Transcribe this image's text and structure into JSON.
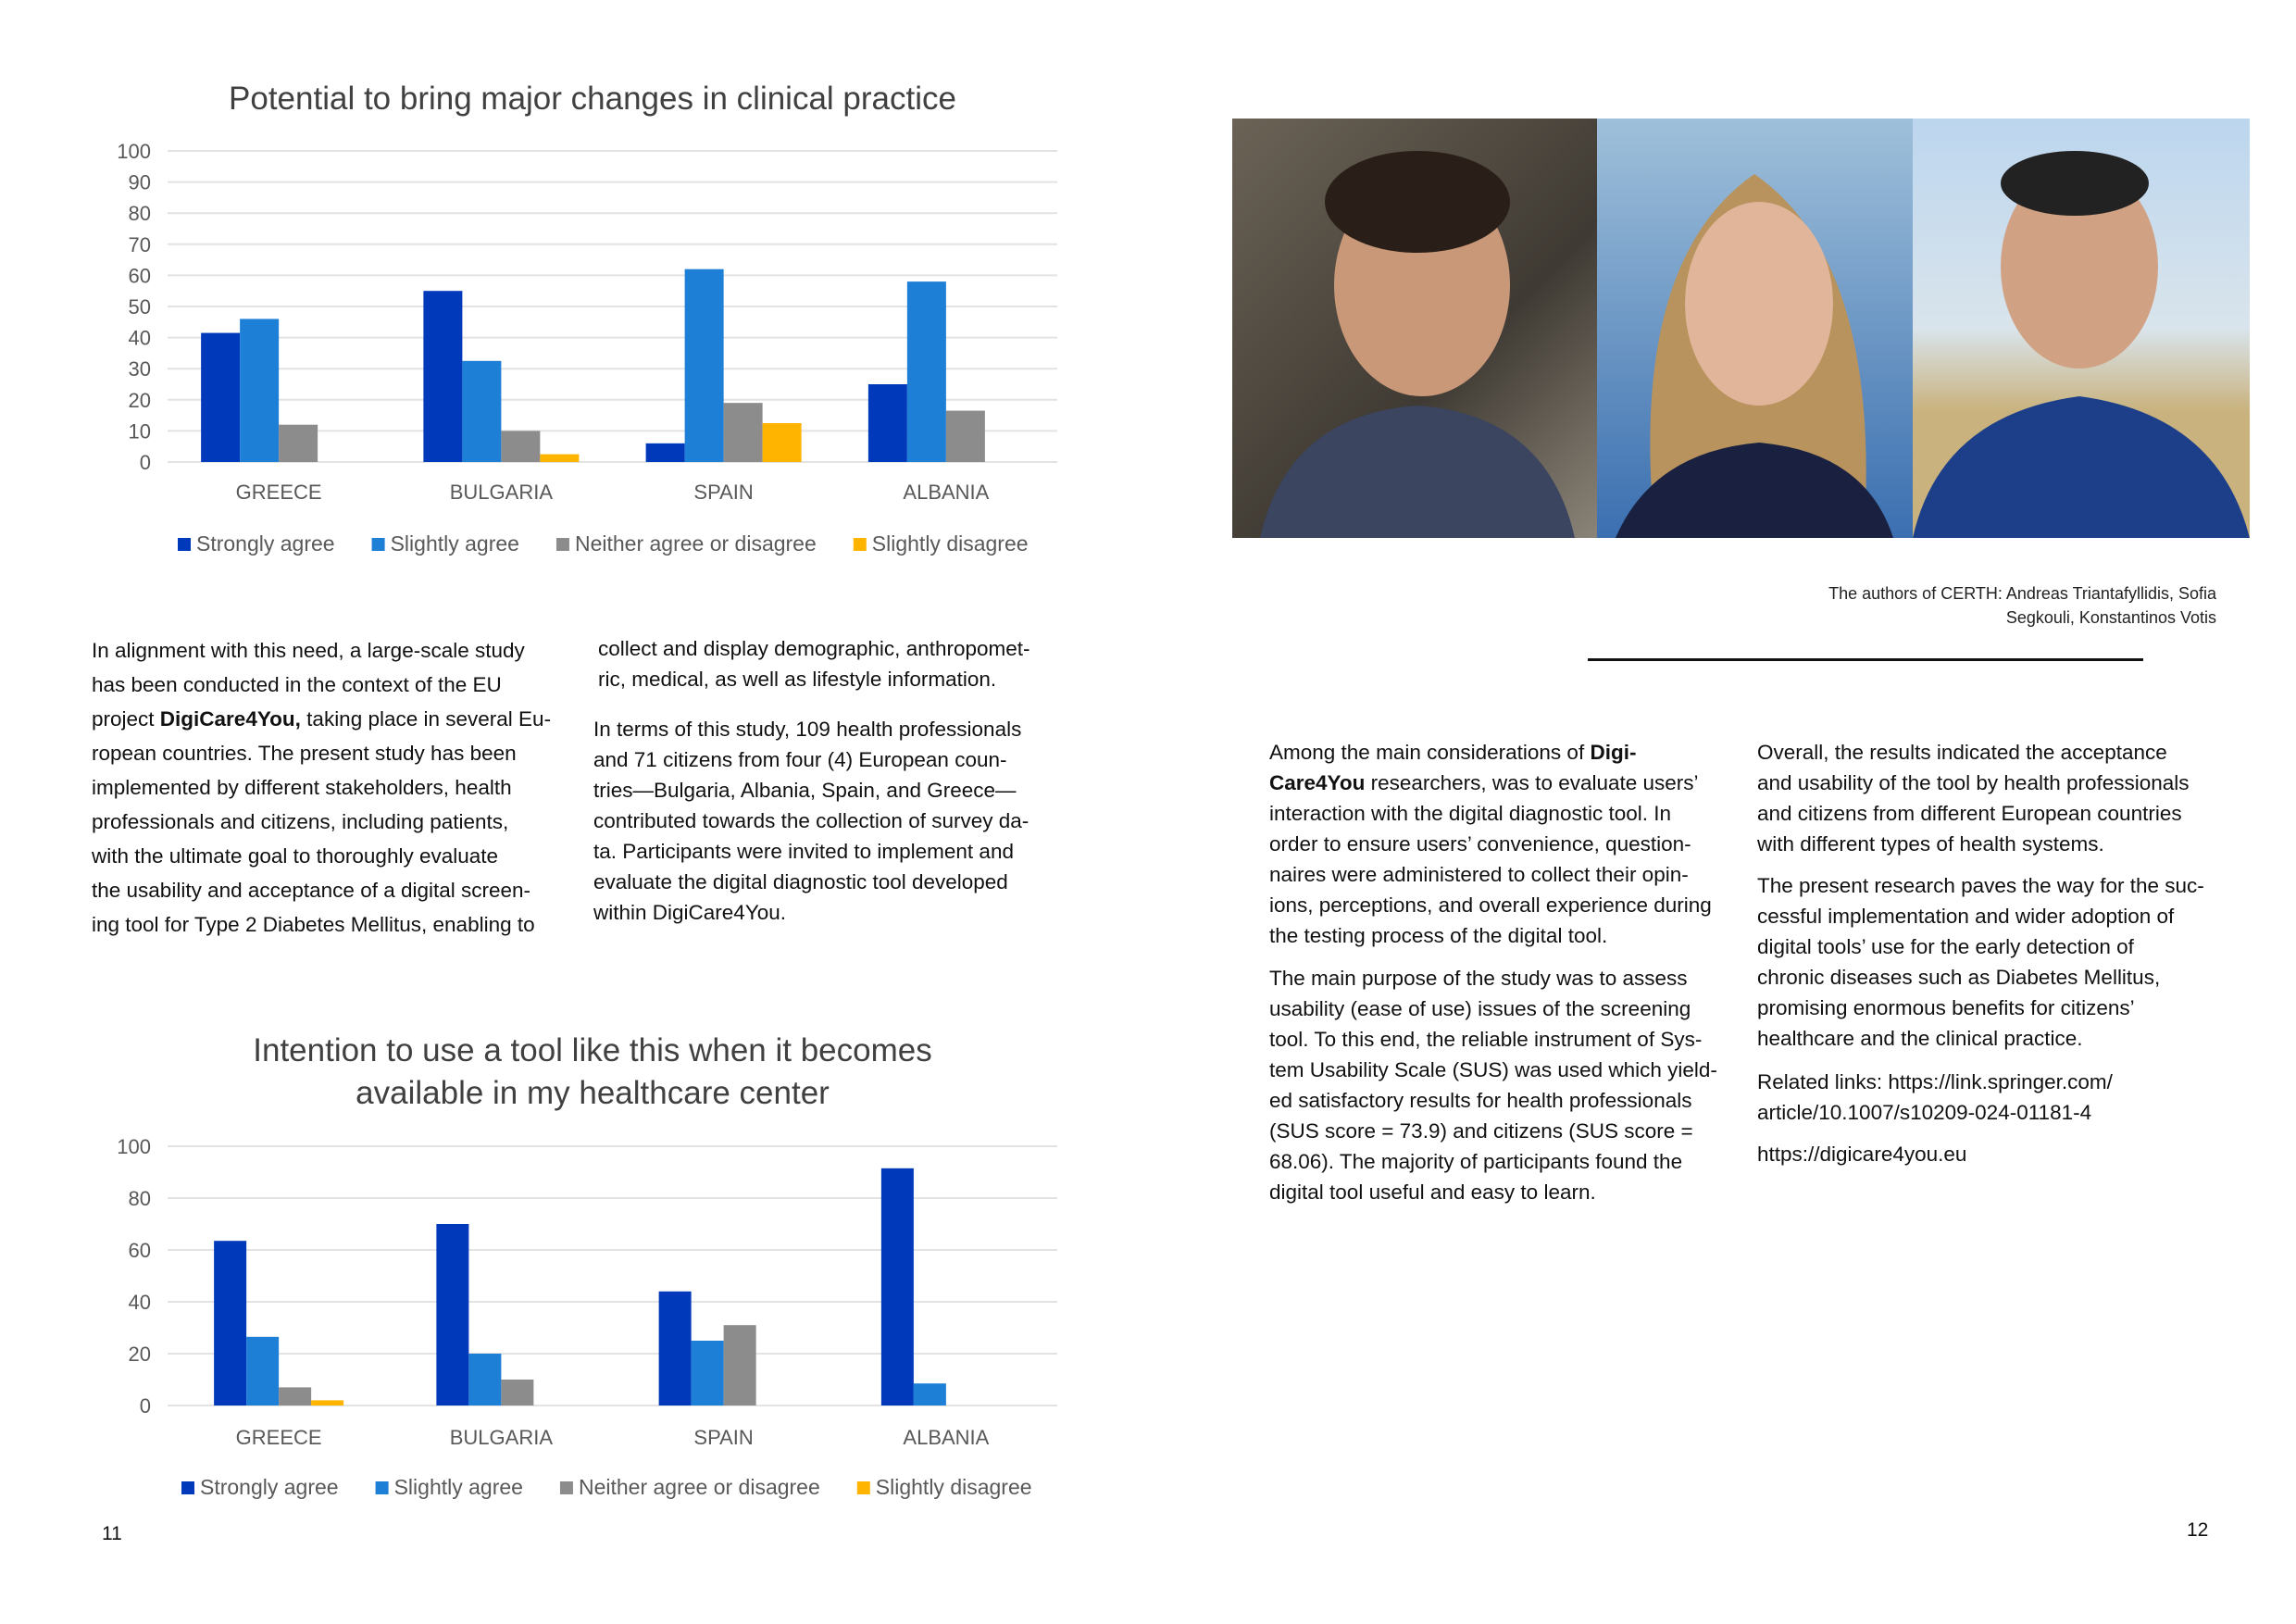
{
  "chart_data": [
    {
      "type": "bar",
      "title": "Potential to bring major changes in clinical practice",
      "categories": [
        "GREECE",
        "BULGARIA",
        "SPAIN",
        "ALBANIA"
      ],
      "ylim": [
        0,
        100
      ],
      "yticks": [
        0,
        10,
        20,
        30,
        40,
        50,
        60,
        70,
        80,
        90,
        100
      ],
      "grid": true,
      "legend": "bottom",
      "series": [
        {
          "name": "Strongly agree",
          "color": "#0039BA",
          "values": [
            41.5,
            55,
            6,
            25
          ]
        },
        {
          "name": "Slightly agree",
          "color": "#1E7FD6",
          "values": [
            46,
            32.5,
            62,
            58
          ]
        },
        {
          "name": "Neither agree or disagree",
          "color": "#8C8C8C",
          "values": [
            12,
            10,
            19,
            16.5
          ]
        },
        {
          "name": "Slightly disagree",
          "color": "#FFB400",
          "values": [
            0,
            2.5,
            12.5,
            0
          ]
        }
      ]
    },
    {
      "type": "bar",
      "title": [
        "Intention to use a tool like this when it becomes",
        "available in my healthcare center"
      ],
      "categories": [
        "GREECE",
        "BULGARIA",
        "SPAIN",
        "ALBANIA"
      ],
      "ylim": [
        0,
        100
      ],
      "yticks": [
        0,
        20,
        40,
        60,
        80,
        100
      ],
      "grid": true,
      "legend": "bottom",
      "series": [
        {
          "name": "Strongly agree",
          "color": "#0039BA",
          "values": [
            63.5,
            70,
            44,
            91.5
          ]
        },
        {
          "name": "Slightly agree",
          "color": "#1E7FD6",
          "values": [
            26.5,
            20,
            25,
            8.5
          ]
        },
        {
          "name": "Neither agree or disagree",
          "color": "#8C8C8C",
          "values": [
            7,
            10,
            31,
            0
          ]
        },
        {
          "name": "Slightly disagree",
          "color": "#FFB400",
          "values": [
            2,
            0,
            0,
            0
          ]
        }
      ]
    }
  ],
  "left_text": {
    "col1": [
      [
        "In alignment with this need, a large-scale study",
        "has been conducted in the context of the EU",
        [
          {
            "text": "project "
          },
          {
            "text": "DigiCare4You,",
            "bold": true
          },
          {
            "text": " taking place in several Eu-"
          }
        ],
        "ropean countries. The present study has been",
        "implemented by different stakeholders, health",
        "professionals and citizens, including patients,",
        "with the ultimate goal to thoroughly evaluate",
        "the usability and acceptance of a digital screen-",
        "ing tool for Type 2 Diabetes Mellitus, enabling to"
      ]
    ],
    "col2": [
      [
        "collect and display demographic, anthropomet-",
        "ric, medical, as well as lifestyle information."
      ],
      [
        "In terms of this study, 109 health professionals",
        "and 71 citizens from four (4) European coun-",
        "tries—Bulgaria, Albania, Spain, and Greece—",
        "contributed towards the collection of survey da-",
        "ta. Participants were invited to implement and",
        "evaluate the digital diagnostic tool developed",
        "within DigiCare4You."
      ]
    ]
  },
  "photo_caption": [
    "The authors of CERTH: Andreas Triantafyllidis, Sofia",
    "Segkouli, Konstantinos Votis"
  ],
  "right_text": {
    "col3": [
      [
        [
          {
            "text": "Among the main considerations of "
          },
          {
            "text": "Digi-",
            "bold": true
          }
        ],
        [
          {
            "text": "Care4You",
            "bold": true
          },
          {
            "text": " researchers, was to evaluate users’"
          }
        ],
        "interaction with the digital diagnostic tool. In",
        "order to ensure users’ convenience, question-",
        "naires were administered to collect their opin-",
        "ions, perceptions, and overall experience during",
        "the testing process of the digital tool."
      ],
      [
        "The main purpose of the study was to assess",
        "usability (ease of use) issues of the screening",
        "tool. To this end, the reliable instrument of Sys-",
        "tem Usability Scale (SUS) was used which yield-",
        "ed satisfactory results for health professionals",
        "(SUS score = 73.9) and citizens (SUS score =",
        "68.06). The majority of participants found the",
        "digital tool useful and easy to learn."
      ]
    ],
    "col4": [
      [
        "Overall, the results indicated the acceptance",
        "and usability of the tool by health professionals",
        "and citizens from different European countries",
        "with different types of health systems."
      ],
      [
        "The present research paves the way for the suc-",
        "cessful implementation and wider adoption of",
        "digital tools’ use for the early detection of",
        "chronic diseases such as Diabetes Mellitus,",
        "promising enormous benefits for citizens’",
        "healthcare and the clinical practice."
      ],
      [
        "Related links: https://link.springer.com/",
        "article/10.1007/s10209-024-01181-4"
      ],
      [
        "https://digicare4you.eu"
      ]
    ]
  },
  "page_numbers": {
    "left": "11",
    "right": "12"
  }
}
